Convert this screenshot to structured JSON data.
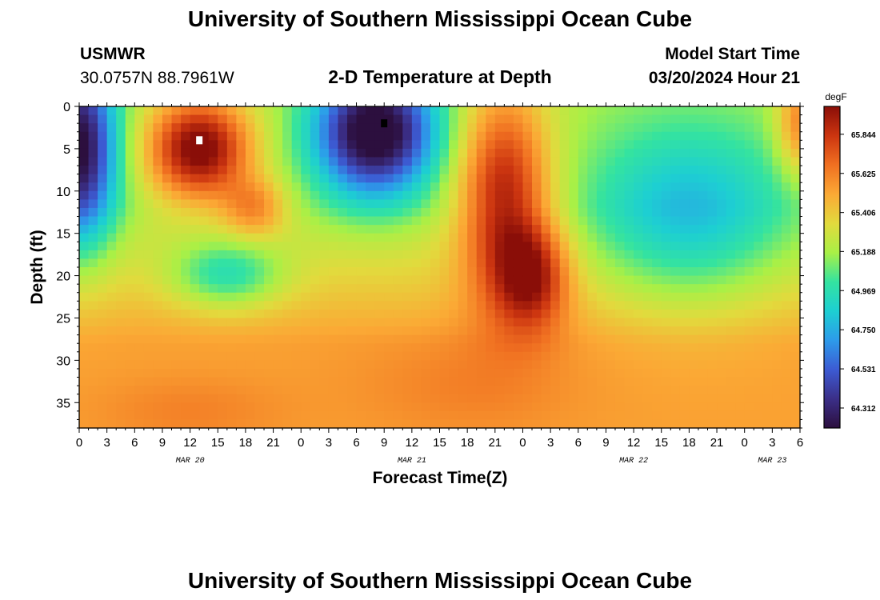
{
  "header": {
    "title": "University of Southern Mississippi Ocean Cube",
    "station": "USMWR",
    "coords": "30.0757N  88.7961W",
    "plot_title": "2-D Temperature at Depth",
    "model_label": "Model Start Time",
    "model_time": "03/20/2024 Hour 21"
  },
  "footer": {
    "title": "University of Southern Mississippi Ocean Cube"
  },
  "colors": {
    "scale": [
      "#2c0f3e",
      "#3b2f88",
      "#3c5bd3",
      "#2d9bea",
      "#1dcfd2",
      "#34e3a0",
      "#a9f046",
      "#e2da3d",
      "#fba935",
      "#f07021",
      "#cc3510",
      "#8a0e08"
    ]
  },
  "chart_data": {
    "type": "heatmap",
    "xlabel": "Forecast Time(Z)",
    "ylabel": "Depth (ft)",
    "x_start_hour": 0,
    "x_end_hour": 78,
    "xlim": [
      0,
      78
    ],
    "ylim": [
      38,
      0
    ],
    "x_tick_labels": [
      "0",
      "3",
      "6",
      "9",
      "12",
      "15",
      "18",
      "21",
      "0",
      "3",
      "6",
      "9",
      "12",
      "15",
      "18",
      "21",
      "0",
      "3",
      "6",
      "9",
      "12",
      "15",
      "18",
      "21",
      "0",
      "3",
      "6"
    ],
    "date_labels": [
      {
        "label": "MAR 20",
        "hour": 12
      },
      {
        "label": "MAR 21",
        "hour": 36
      },
      {
        "label": "MAR 22",
        "hour": 60
      },
      {
        "label": "MAR 23",
        "hour": 75
      }
    ],
    "y_ticks": [
      0,
      5,
      10,
      15,
      20,
      25,
      30,
      35
    ],
    "colorbar": {
      "unit": "degF",
      "min": 64.2,
      "max": 66.0,
      "tick_values": [
        65.844,
        65.625,
        65.406,
        65.188,
        64.969,
        64.75,
        64.531,
        64.312
      ]
    },
    "grid": false,
    "markers": [
      {
        "name": "max-marker",
        "color": "#ffffff",
        "x": 13,
        "depth": 4
      },
      {
        "name": "min-marker",
        "color": "#000000",
        "x": 33,
        "depth": 2
      }
    ]
  }
}
